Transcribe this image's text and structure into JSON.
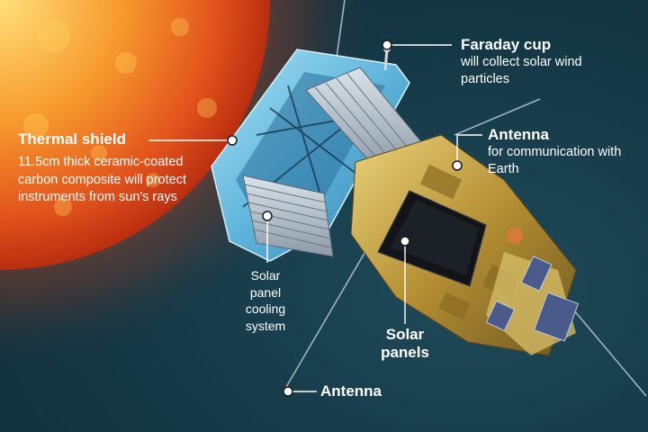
{
  "labels": {
    "thermal_shield": {
      "title": "Thermal shield",
      "description": "11.5cm thick ceramic-coated carbon composite will protect instruments from sun's rays"
    },
    "faraday_cup": {
      "title": "Faraday cup",
      "description": "will collect solar wind particles"
    },
    "antenna_top": {
      "title": "Antenna",
      "description": "for communication with Earth"
    },
    "cooling_system": {
      "text": "Solar panel cooling system"
    },
    "solar_panels": {
      "title": "Solar panels"
    },
    "antenna_bottom": {
      "title": "Antenna"
    }
  },
  "colors": {
    "background": "#143744",
    "sun_core": "#ffe07a",
    "sun_edge": "#d83a14",
    "shield": "#7fc7e6",
    "body_gold": "#c9a94a",
    "panel": "#121418",
    "label_text": "#ffffff"
  }
}
